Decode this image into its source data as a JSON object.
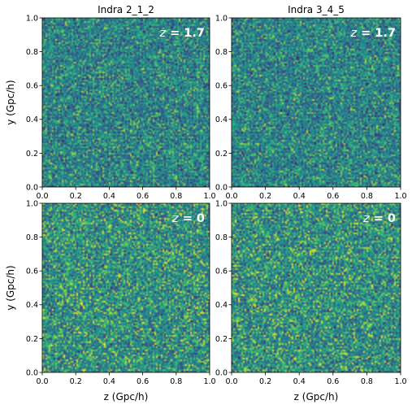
{
  "chart_data": [
    {
      "type": "heatmap",
      "title": "Indra 2_1_2",
      "annotation": "z = 1.7",
      "annotation_var": "z",
      "annotation_value": "= 1.7",
      "xlabel": "",
      "ylabel": "y (Gpc/h)",
      "xlim": [
        0,
        1
      ],
      "ylim": [
        0,
        1
      ],
      "xticks": [
        "0.0",
        "0.2",
        "0.4",
        "0.6",
        "0.8",
        "1.0"
      ],
      "yticks": [
        "0.0",
        "0.2",
        "0.4",
        "0.6",
        "0.8",
        "1.0"
      ],
      "colormap": "viridis"
    },
    {
      "type": "heatmap",
      "title": "Indra 3_4_5",
      "annotation": "z = 1.7",
      "annotation_var": "z",
      "annotation_value": "= 1.7",
      "xlabel": "",
      "ylabel": "",
      "xlim": [
        0,
        1
      ],
      "ylim": [
        0,
        1
      ],
      "xticks": [
        "0.0",
        "0.2",
        "0.4",
        "0.6",
        "0.8",
        "1.0"
      ],
      "yticks": [
        "0.0",
        "0.2",
        "0.4",
        "0.6",
        "0.8",
        "1.0"
      ],
      "colormap": "viridis"
    },
    {
      "type": "heatmap",
      "title": "",
      "annotation": "z = 0",
      "annotation_var": "z",
      "annotation_value": "= 0",
      "xlabel": "z (Gpc/h)",
      "ylabel": "y (Gpc/h)",
      "xlim": [
        0,
        1
      ],
      "ylim": [
        0,
        1
      ],
      "xticks": [
        "0.0",
        "0.2",
        "0.4",
        "0.6",
        "0.8",
        "1.0"
      ],
      "yticks": [
        "0.0",
        "0.2",
        "0.4",
        "0.6",
        "0.8",
        "1.0"
      ],
      "colormap": "viridis"
    },
    {
      "type": "heatmap",
      "title": "",
      "annotation": "z = 0",
      "annotation_var": "z",
      "annotation_value": "= 0",
      "xlabel": "z (Gpc/h)",
      "ylabel": "",
      "xlim": [
        0,
        1
      ],
      "ylim": [
        0,
        1
      ],
      "xticks": [
        "0.0",
        "0.2",
        "0.4",
        "0.6",
        "0.8",
        "1.0"
      ],
      "yticks": [
        "0.0",
        "0.2",
        "0.4",
        "0.6",
        "0.8",
        "1.0"
      ],
      "colormap": "viridis"
    }
  ],
  "colors": {
    "viridis_dark": "#440154",
    "viridis_blue": "#3b528b",
    "viridis_teal": "#21918c",
    "viridis_green": "#5ec962",
    "viridis_yellow": "#fde725"
  }
}
